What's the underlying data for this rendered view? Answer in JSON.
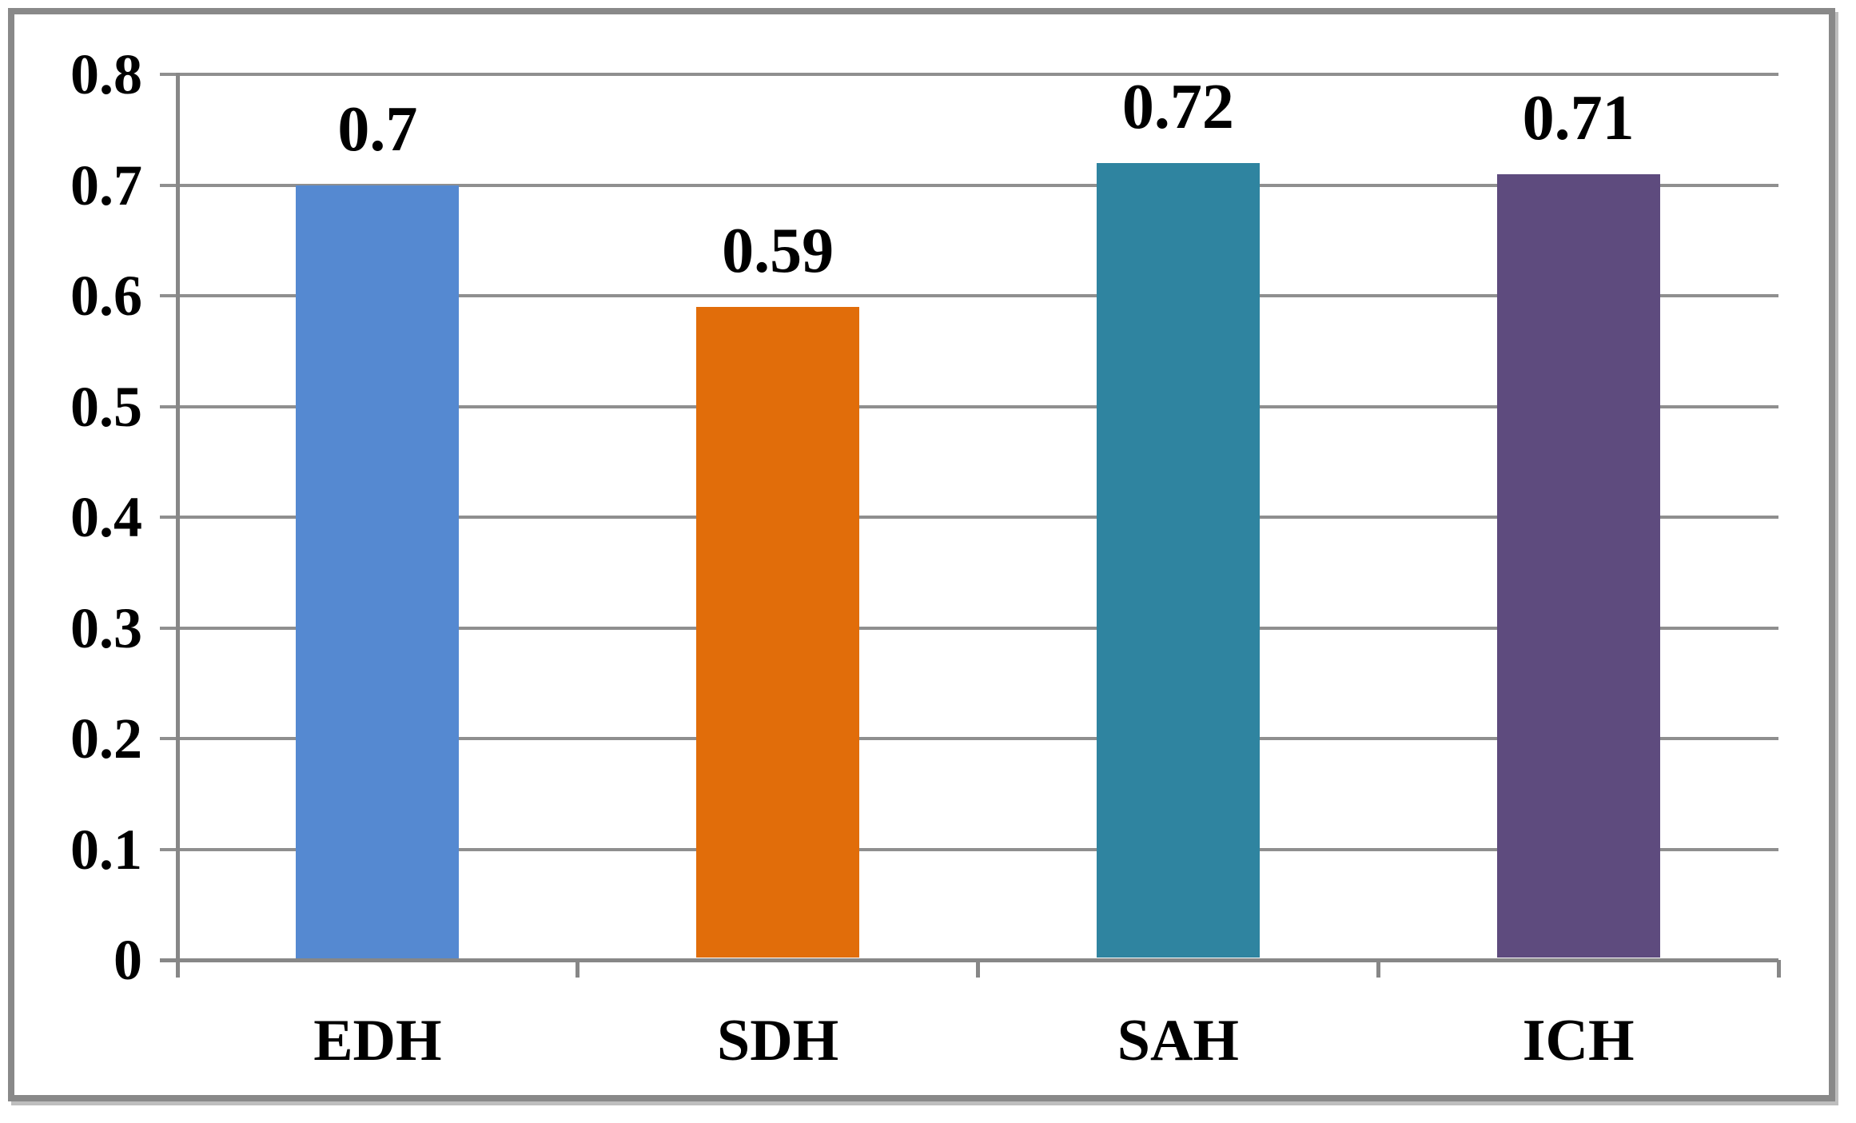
{
  "chart_data": {
    "type": "bar",
    "title": "",
    "xlabel": "",
    "ylabel": "",
    "categories": [
      "EDH",
      "SDH",
      "SAH",
      "ICH"
    ],
    "values": [
      0.7,
      0.59,
      0.72,
      0.71
    ],
    "data_labels": [
      "0.7",
      "0.59",
      "0.72",
      "0.71"
    ],
    "bar_colors": [
      "#5589D1",
      "#E16D0A",
      "#2F84A0",
      "#5E4B7E"
    ],
    "y_axis": {
      "min": 0,
      "max": 0.8,
      "tick_values": [
        0.8,
        0.7,
        0.6,
        0.5,
        0.4,
        0.3,
        0.2,
        0.1,
        0
      ],
      "tick_labels": [
        "0.8",
        "0.7",
        "0.6",
        "0.5",
        "0.4",
        "0.3",
        "0.2",
        "0.1",
        "0"
      ]
    },
    "grid": true,
    "legend": false,
    "colors": {
      "gridline": "#8F8F8F",
      "axis": "#878787",
      "frame_border": "#898989",
      "background": "#FFFFFF",
      "label_text": "#000000"
    }
  }
}
